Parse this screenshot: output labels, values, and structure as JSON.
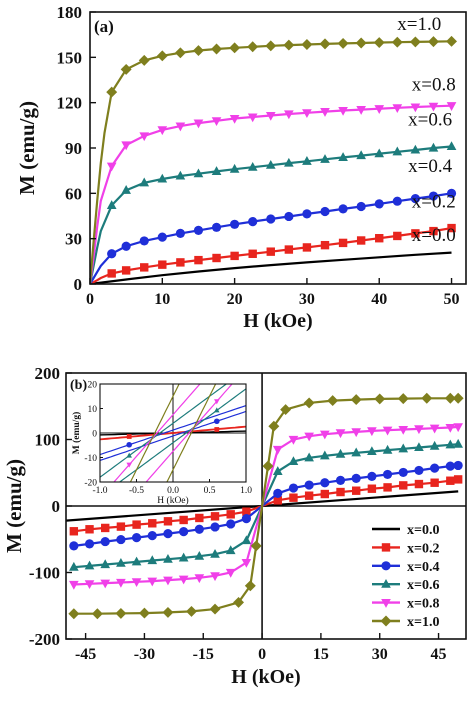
{
  "chart_data": [
    {
      "type": "line",
      "panel_label": "(a)",
      "xlabel": "H (kOe)",
      "ylabel": "M (emu/g)",
      "xlim": [
        0,
        52
      ],
      "ylim": [
        0,
        180
      ],
      "xticks": [
        0,
        10,
        20,
        30,
        40,
        50
      ],
      "yticks": [
        0,
        30,
        60,
        90,
        120,
        150,
        180
      ],
      "grid": false,
      "series": [
        {
          "name": "x=0.0",
          "color": "#000000",
          "marker": "none",
          "x": [
            0,
            5,
            10,
            15,
            20,
            25,
            30,
            35,
            40,
            45,
            50
          ],
          "y": [
            0,
            3,
            5.8,
            8.3,
            10.5,
            12.5,
            14.3,
            16,
            17.7,
            19.3,
            20.8
          ]
        },
        {
          "name": "x=0.2",
          "color": "#e8251e",
          "marker": "square",
          "x": [
            0,
            0.5,
            1,
            1.5,
            3,
            5,
            7.5,
            10,
            12.5,
            15,
            17.5,
            20,
            22.5,
            25,
            27.5,
            30,
            32.5,
            35,
            37.5,
            40,
            42.5,
            45,
            47.5,
            50
          ],
          "y": [
            0,
            1.2,
            2.5,
            4,
            7,
            9,
            11,
            12.8,
            14.3,
            15.8,
            17.2,
            18.6,
            20,
            21.4,
            22.8,
            24.2,
            25.7,
            27.2,
            28.8,
            30.3,
            31.8,
            33.5,
            35,
            37
          ]
        },
        {
          "name": "x=0.4",
          "color": "#1f2fd8",
          "marker": "circle",
          "x": [
            0,
            0.5,
            1,
            1.5,
            3,
            5,
            7.5,
            10,
            12.5,
            15,
            17.5,
            20,
            22.5,
            25,
            27.5,
            30,
            32.5,
            35,
            37.5,
            40,
            42.5,
            45,
            47.5,
            50
          ],
          "y": [
            0,
            4,
            8,
            12,
            20,
            25,
            28.5,
            31,
            33.5,
            35.5,
            37.5,
            39.5,
            41.3,
            43,
            44.7,
            46.4,
            48,
            49.7,
            51.3,
            53,
            54.8,
            56.5,
            58.2,
            60
          ]
        },
        {
          "name": "x=0.6",
          "color": "#1d7c7c",
          "marker": "triangle-up",
          "x": [
            0,
            0.5,
            1,
            1.5,
            3,
            5,
            7.5,
            10,
            12.5,
            15,
            17.5,
            20,
            22.5,
            25,
            27.5,
            30,
            32.5,
            35,
            37.5,
            40,
            42.5,
            45,
            47.5,
            50
          ],
          "y": [
            0,
            12,
            24,
            35,
            52,
            62,
            67,
            69.5,
            71.5,
            73,
            74.5,
            76,
            77.3,
            78.6,
            80,
            81.2,
            82.5,
            83.8,
            85,
            86.2,
            87.5,
            88.7,
            90,
            91
          ]
        },
        {
          "name": "x=0.8",
          "color": "#f040e8",
          "marker": "triangle-down",
          "x": [
            0,
            0.5,
            1,
            1.5,
            3,
            5,
            7.5,
            10,
            12.5,
            15,
            17.5,
            20,
            22.5,
            25,
            27.5,
            30,
            32.5,
            35,
            37.5,
            40,
            42.5,
            45,
            47.5,
            50
          ],
          "y": [
            0,
            18,
            38,
            55,
            78,
            92,
            98,
            102,
            104.5,
            106.5,
            108,
            109.5,
            110.5,
            111.5,
            112.5,
            113.3,
            114.1,
            114.8,
            115.4,
            116,
            116.6,
            117.1,
            117.6,
            118
          ]
        },
        {
          "name": "x=1.0",
          "color": "#7f7f1e",
          "marker": "diamond",
          "x": [
            0,
            0.5,
            1,
            1.5,
            2,
            3,
            5,
            7.5,
            10,
            12.5,
            15,
            17.5,
            20,
            22.5,
            25,
            27.5,
            30,
            32.5,
            35,
            37.5,
            40,
            42.5,
            45,
            47.5,
            50
          ],
          "y": [
            0,
            28,
            55,
            80,
            100,
            127,
            142,
            148,
            151,
            153,
            154.5,
            155.5,
            156.3,
            157,
            157.6,
            158.1,
            158.5,
            158.9,
            159.2,
            159.5,
            159.8,
            160,
            160.2,
            160.4,
            160.6
          ]
        }
      ],
      "annotations": [
        {
          "text": "x=1.0",
          "at": [
            42.5,
            168
          ]
        },
        {
          "text": "x=0.8",
          "at": [
            44.5,
            128
          ]
        },
        {
          "text": "x=0.6",
          "at": [
            44,
            105
          ]
        },
        {
          "text": "x=0.4",
          "at": [
            44,
            74
          ]
        },
        {
          "text": "x=0.2",
          "at": [
            44.5,
            50.5
          ]
        },
        {
          "text": "x=0.0",
          "at": [
            44.5,
            28.5
          ]
        }
      ]
    },
    {
      "type": "line",
      "panel_label": "(b)",
      "xlabel": "H (kOe)",
      "ylabel": "M (emu/g)",
      "xlim": [
        -50,
        52
      ],
      "ylim": [
        -200,
        200
      ],
      "xticks": [
        -45,
        -30,
        -15,
        0,
        15,
        30,
        45
      ],
      "yticks": [
        -200,
        -100,
        0,
        100,
        200
      ],
      "legend": "bottom-right",
      "grid": false,
      "series": [
        {
          "name": "x=0.0",
          "color": "#000000",
          "marker": "none",
          "x": [
            -50,
            50
          ],
          "y": [
            -22,
            22
          ]
        },
        {
          "name": "x=0.2",
          "color": "#e8251e",
          "marker": "square",
          "x": [
            -48,
            -44,
            -40,
            -36,
            -32,
            -28,
            -24,
            -20,
            -16,
            -12,
            -8,
            -4,
            0,
            4,
            8,
            12,
            16,
            20,
            24,
            28,
            32,
            36,
            40,
            44,
            48,
            50
          ],
          "y": [
            -38,
            -35,
            -33,
            -31,
            -28,
            -26,
            -23,
            -21,
            -18,
            -15.5,
            -12.5,
            -8.5,
            0,
            8.5,
            12.5,
            15.5,
            18,
            21,
            23,
            26,
            28,
            31,
            33,
            35,
            38,
            40
          ]
        },
        {
          "name": "x=0.4",
          "color": "#1f2fd8",
          "marker": "circle",
          "x": [
            -48,
            -44,
            -40,
            -36,
            -32,
            -28,
            -24,
            -20,
            -16,
            -12,
            -8,
            -4,
            0,
            4,
            8,
            12,
            16,
            20,
            24,
            28,
            32,
            36,
            40,
            44,
            48,
            50
          ],
          "y": [
            -60,
            -57,
            -53.5,
            -50.5,
            -47.5,
            -44.5,
            -41.5,
            -38.5,
            -35,
            -31.5,
            -27,
            -19,
            0,
            19,
            27,
            31.5,
            35,
            38.5,
            41.5,
            44.5,
            47.5,
            50.5,
            53.5,
            57,
            60,
            61
          ]
        },
        {
          "name": "x=0.6",
          "color": "#1d7c7c",
          "marker": "triangle-up",
          "x": [
            -48,
            -44,
            -40,
            -36,
            -32,
            -28,
            -24,
            -20,
            -16,
            -12,
            -8,
            -4,
            0,
            4,
            8,
            12,
            16,
            20,
            24,
            28,
            32,
            36,
            40,
            44,
            48,
            50
          ],
          "y": [
            -92,
            -90,
            -88,
            -86,
            -84,
            -82,
            -80,
            -78,
            -75.5,
            -72.5,
            -67,
            -52,
            0,
            52,
            67,
            72.5,
            75.5,
            78,
            80,
            82,
            84,
            86,
            88,
            90,
            92,
            93
          ]
        },
        {
          "name": "x=0.8",
          "color": "#f040e8",
          "marker": "triangle-down",
          "x": [
            -48,
            -44,
            -40,
            -36,
            -32,
            -28,
            -24,
            -20,
            -16,
            -12,
            -8,
            -4,
            0,
            4,
            8,
            12,
            16,
            20,
            24,
            28,
            32,
            36,
            40,
            44,
            48,
            50
          ],
          "y": [
            -118,
            -117,
            -116,
            -115,
            -114,
            -113,
            -111.5,
            -110,
            -108,
            -105,
            -100,
            -85,
            0,
            85,
            100,
            105,
            108,
            110,
            111.5,
            113,
            114,
            115,
            116,
            117,
            118,
            119
          ]
        },
        {
          "name": "x=1.0",
          "color": "#7f7f1e",
          "marker": "diamond",
          "x": [
            -48,
            -42,
            -36,
            -30,
            -24,
            -18,
            -12,
            -6,
            -3,
            -1.5,
            0,
            1.5,
            3,
            6,
            12,
            18,
            24,
            30,
            36,
            42,
            48,
            50
          ],
          "y": [
            -162,
            -162,
            -161.5,
            -161,
            -160,
            -158.5,
            -155,
            -145,
            -120,
            -60,
            0,
            60,
            120,
            145,
            155,
            158.5,
            160,
            161,
            161.5,
            162,
            162,
            162
          ]
        }
      ],
      "inset": {
        "xlabel": "H (kOe)",
        "ylabel": "M (emu/g)",
        "xlim": [
          -1.0,
          1.0
        ],
        "ylim": [
          -20,
          20
        ],
        "xticks": [
          -1.0,
          -0.5,
          0.0,
          0.5,
          1.0
        ],
        "yticks": [
          -20,
          -10,
          0,
          10,
          20
        ],
        "xtick_labels": [
          "-1.0",
          "-0.5",
          "0.0",
          "0.5",
          "1.0"
        ],
        "ytick_labels": [
          "-20",
          "-10",
          "0",
          "10",
          "20"
        ]
      }
    }
  ]
}
